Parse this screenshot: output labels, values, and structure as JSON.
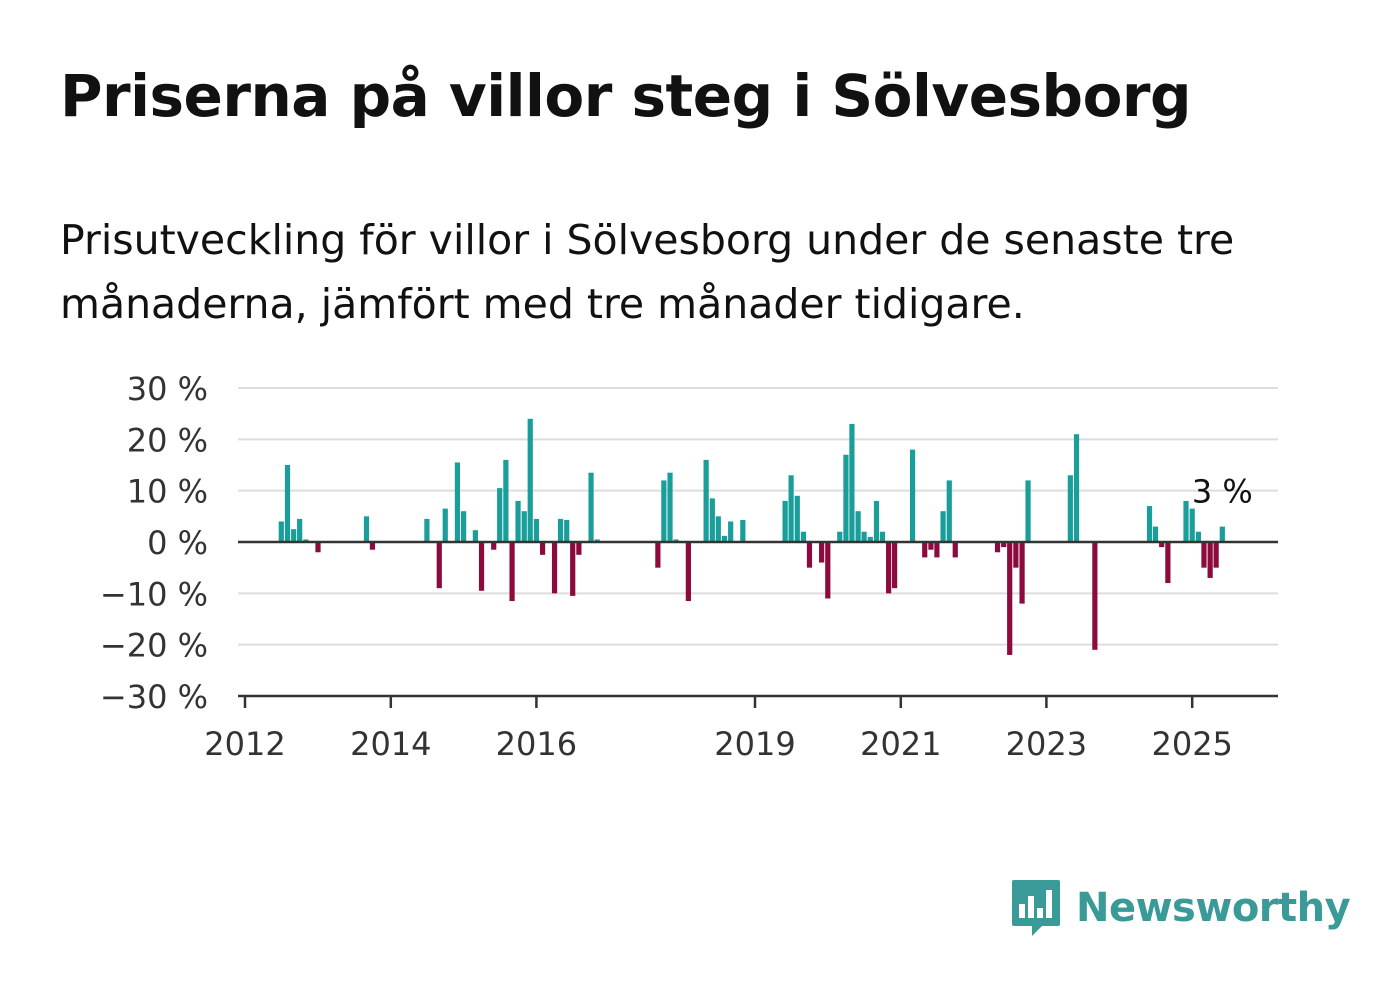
{
  "title": "Priserna på villor steg i Sölvesborg",
  "subtitle": "Prisutveckling för villor i Sölvesborg under de senaste tre månaderna, jämfört med tre månader tidigare.",
  "brand": {
    "name": "Newsworthy",
    "color": "#3a9a97",
    "icon": "bar-chart-speech-bubble-icon"
  },
  "colors": {
    "positive": "#1a9e9a",
    "negative": "#8c0a3e",
    "grid": "#dddddd",
    "axis": "#333333"
  },
  "chart_data": {
    "type": "bar",
    "title": "Priserna på villor steg i Sölvesborg",
    "subtitle": "Prisutveckling för villor i Sölvesborg under de senaste tre månaderna, jämfört med tre månader tidigare.",
    "xlabel": "",
    "ylabel": "",
    "ylim": [
      -30,
      30
    ],
    "xlim": [
      "2012-01-01",
      "2026-03-31"
    ],
    "yticks": [
      30,
      20,
      10,
      0,
      -10,
      -20,
      -30
    ],
    "ytick_labels": [
      "30 %",
      "20 %",
      "10 %",
      "0 %",
      "−10 %",
      "−20 %",
      "−30 %"
    ],
    "xticks": [
      "2012-01-01",
      "2014-01-01",
      "2016-01-01",
      "2019-01-01",
      "2021-01-01",
      "2023-01-01",
      "2025-01-01"
    ],
    "xtick_labels": [
      "2012",
      "2014",
      "2016",
      "2019",
      "2021",
      "2023",
      "2025"
    ],
    "grid": true,
    "legend": "none",
    "annotation": {
      "date": "2025-06-01",
      "value": 3,
      "label": "3 %"
    },
    "dates": [
      "2012-07-01",
      "2012-08-01",
      "2012-09-01",
      "2012-10-01",
      "2012-11-01",
      "2013-01-01",
      "2013-09-01",
      "2013-10-01",
      "2014-07-01",
      "2014-09-01",
      "2014-10-01",
      "2014-12-01",
      "2015-01-01",
      "2015-03-01",
      "2015-04-01",
      "2015-06-01",
      "2015-07-01",
      "2015-08-01",
      "2015-09-01",
      "2015-10-01",
      "2015-11-01",
      "2015-12-01",
      "2016-01-01",
      "2016-02-01",
      "2016-04-01",
      "2016-05-01",
      "2016-06-01",
      "2016-07-01",
      "2016-08-01",
      "2016-10-01",
      "2016-11-01",
      "2017-09-01",
      "2017-10-01",
      "2017-11-01",
      "2017-12-01",
      "2018-02-01",
      "2018-05-01",
      "2018-06-01",
      "2018-07-01",
      "2018-08-01",
      "2018-09-01",
      "2018-11-01",
      "2019-06-01",
      "2019-07-01",
      "2019-08-01",
      "2019-09-01",
      "2019-10-01",
      "2019-12-01",
      "2020-01-01",
      "2020-03-01",
      "2020-04-01",
      "2020-05-01",
      "2020-06-01",
      "2020-07-01",
      "2020-08-01",
      "2020-09-01",
      "2020-10-01",
      "2020-11-01",
      "2020-12-01",
      "2021-03-01",
      "2021-05-01",
      "2021-06-01",
      "2021-07-01",
      "2021-08-01",
      "2021-09-01",
      "2021-10-01",
      "2022-05-01",
      "2022-06-01",
      "2022-07-01",
      "2022-08-01",
      "2022-09-01",
      "2022-10-01",
      "2023-05-01",
      "2023-06-01",
      "2023-09-01",
      "2024-06-01",
      "2024-07-01",
      "2024-08-01",
      "2024-09-01",
      "2024-12-01",
      "2025-01-01",
      "2025-02-01",
      "2025-03-01",
      "2025-04-01",
      "2025-05-01",
      "2025-06-01"
    ],
    "values": [
      4,
      15,
      2.5,
      4.5,
      0.5,
      -2,
      5,
      -1.5,
      4.5,
      -9,
      6.5,
      15.5,
      6,
      2.3,
      -9.5,
      -1.5,
      10.5,
      16,
      -11.5,
      8,
      6,
      24,
      4.5,
      -2.5,
      -10,
      4.5,
      4.3,
      -10.5,
      -2.5,
      13.5,
      0.5,
      -5,
      12,
      13.5,
      0.5,
      -11.5,
      16,
      8.5,
      5,
      1.2,
      4,
      4.3,
      8,
      13,
      9,
      2,
      -5,
      -4,
      -11,
      2,
      17,
      23,
      6,
      2,
      1,
      8,
      2,
      -10,
      -9,
      18,
      -3,
      -1.5,
      -3,
      6,
      12,
      -3,
      -2,
      -1,
      -22,
      -5,
      -12,
      12,
      13,
      21,
      -21,
      7,
      3,
      -1,
      -8,
      8,
      6.5,
      2,
      -5,
      -7,
      -5,
      3
    ]
  }
}
